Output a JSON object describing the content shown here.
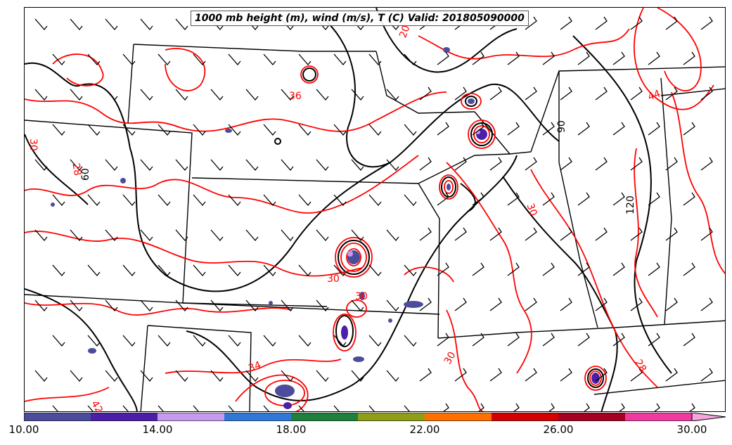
{
  "map": {
    "title": "1000 mb height (m), wind (m/s), T (C) Valid: 201805090000",
    "temperature_contour_color": "#ff0000",
    "height_contour_color": "#000000",
    "boundary_color": "#000000",
    "contour_labels": {
      "temperature": [
        "30",
        "28",
        "30",
        "30",
        "30",
        "28",
        "34",
        "30",
        "20",
        "42",
        "44",
        "36"
      ],
      "height": [
        "90",
        "60",
        "120"
      ]
    }
  },
  "colorbar": {
    "tick_labels": [
      "10.00",
      "14.00",
      "18.00",
      "22.00",
      "26.00",
      "30.00"
    ],
    "colors": [
      "#4c4c9c",
      "#4b1fa8",
      "#c59af0",
      "#2f78d7",
      "#1f7f3c",
      "#8f9e16",
      "#ff7000",
      "#d40000",
      "#a4001f",
      "#ef3aa0",
      "#f7a5dc"
    ]
  }
}
